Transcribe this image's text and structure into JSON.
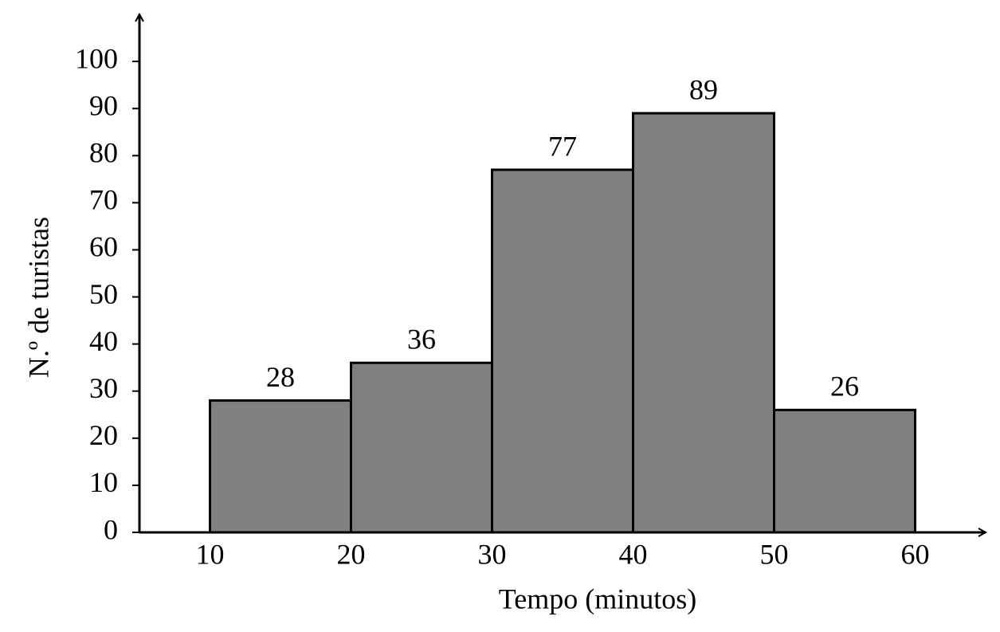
{
  "chart_data": {
    "type": "histogram",
    "x_label": "Tempo (minutos)",
    "y_label": "N.º de turistas",
    "bins": [
      10,
      20,
      30,
      40,
      50,
      60
    ],
    "values": [
      28,
      36,
      77,
      89,
      26
    ],
    "color": "#808080",
    "xlim": [
      5,
      65
    ],
    "xticks": [
      10,
      20,
      30,
      40,
      50,
      60
    ],
    "ylim": [
      0,
      110
    ],
    "yticks": [
      0,
      10,
      20,
      30,
      40,
      50,
      60,
      70,
      80,
      90,
      100
    ],
    "grid": false
  }
}
